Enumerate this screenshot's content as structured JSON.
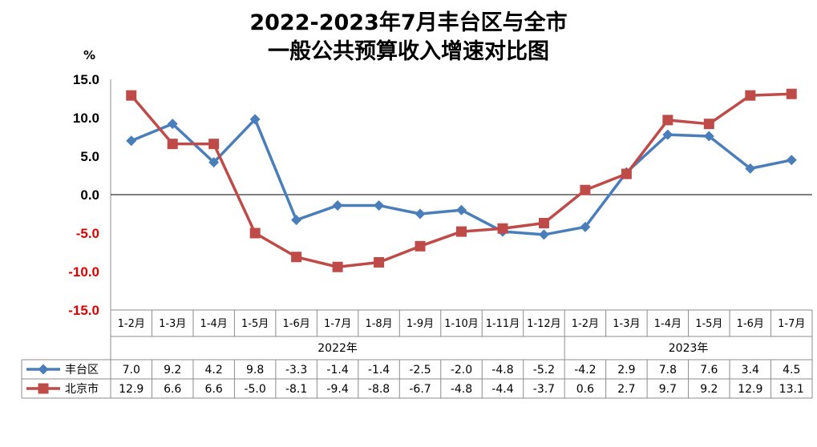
{
  "chart_data": {
    "type": "line",
    "title_line1": "2022-2023年7月丰台区与全市",
    "title_line2": "一般公共预算收入增速对比图",
    "unit": "%",
    "categories": [
      "1-2月",
      "1-3月",
      "1-4月",
      "1-5月",
      "1-6月",
      "1-7月",
      "1-8月",
      "1-9月",
      "1-10月",
      "1-11月",
      "1-12月",
      "1-2月",
      "1-3月",
      "1-4月",
      "1-5月",
      "1-6月",
      "1-7月"
    ],
    "year_groups": [
      {
        "label": "2022年",
        "count": 11
      },
      {
        "label": "2023年",
        "count": 6
      }
    ],
    "y_ticks": [
      "15.0",
      "10.0",
      "5.0",
      "0.0",
      "-5.0",
      "-10.0",
      "-15.0"
    ],
    "ylim": [
      -15,
      15
    ],
    "grid": false,
    "series": [
      {
        "name": "丰台区",
        "color": "#4a7ebb",
        "marker": "diamond",
        "values": [
          7.0,
          9.2,
          4.2,
          9.8,
          -3.3,
          -1.4,
          -1.4,
          -2.5,
          -2.0,
          -4.8,
          -5.2,
          -4.2,
          2.9,
          7.8,
          7.6,
          3.4,
          4.5
        ],
        "labels": [
          "7.0",
          "9.2",
          "4.2",
          "9.8",
          "-3.3",
          "-1.4",
          "-1.4",
          "-2.5",
          "-2.0",
          "-4.8",
          "-5.2",
          "-4.2",
          "2.9",
          "7.8",
          "7.6",
          "3.4",
          "4.5"
        ]
      },
      {
        "name": "北京市",
        "color": "#be4b48",
        "marker": "square",
        "values": [
          12.9,
          6.6,
          6.6,
          -5.0,
          -8.1,
          -9.4,
          -8.8,
          -6.7,
          -4.8,
          -4.4,
          -3.7,
          0.6,
          2.7,
          9.7,
          9.2,
          12.9,
          13.1
        ],
        "labels": [
          "12.9",
          "6.6",
          "6.6",
          "-5.0",
          "-8.1",
          "-9.4",
          "-8.8",
          "-6.7",
          "-4.8",
          "-4.4",
          "-3.7",
          "0.6",
          "2.7",
          "9.7",
          "9.2",
          "12.9",
          "13.1"
        ]
      }
    ],
    "negative_tick_color": "#e00000",
    "positive_tick_color": "#000000"
  }
}
